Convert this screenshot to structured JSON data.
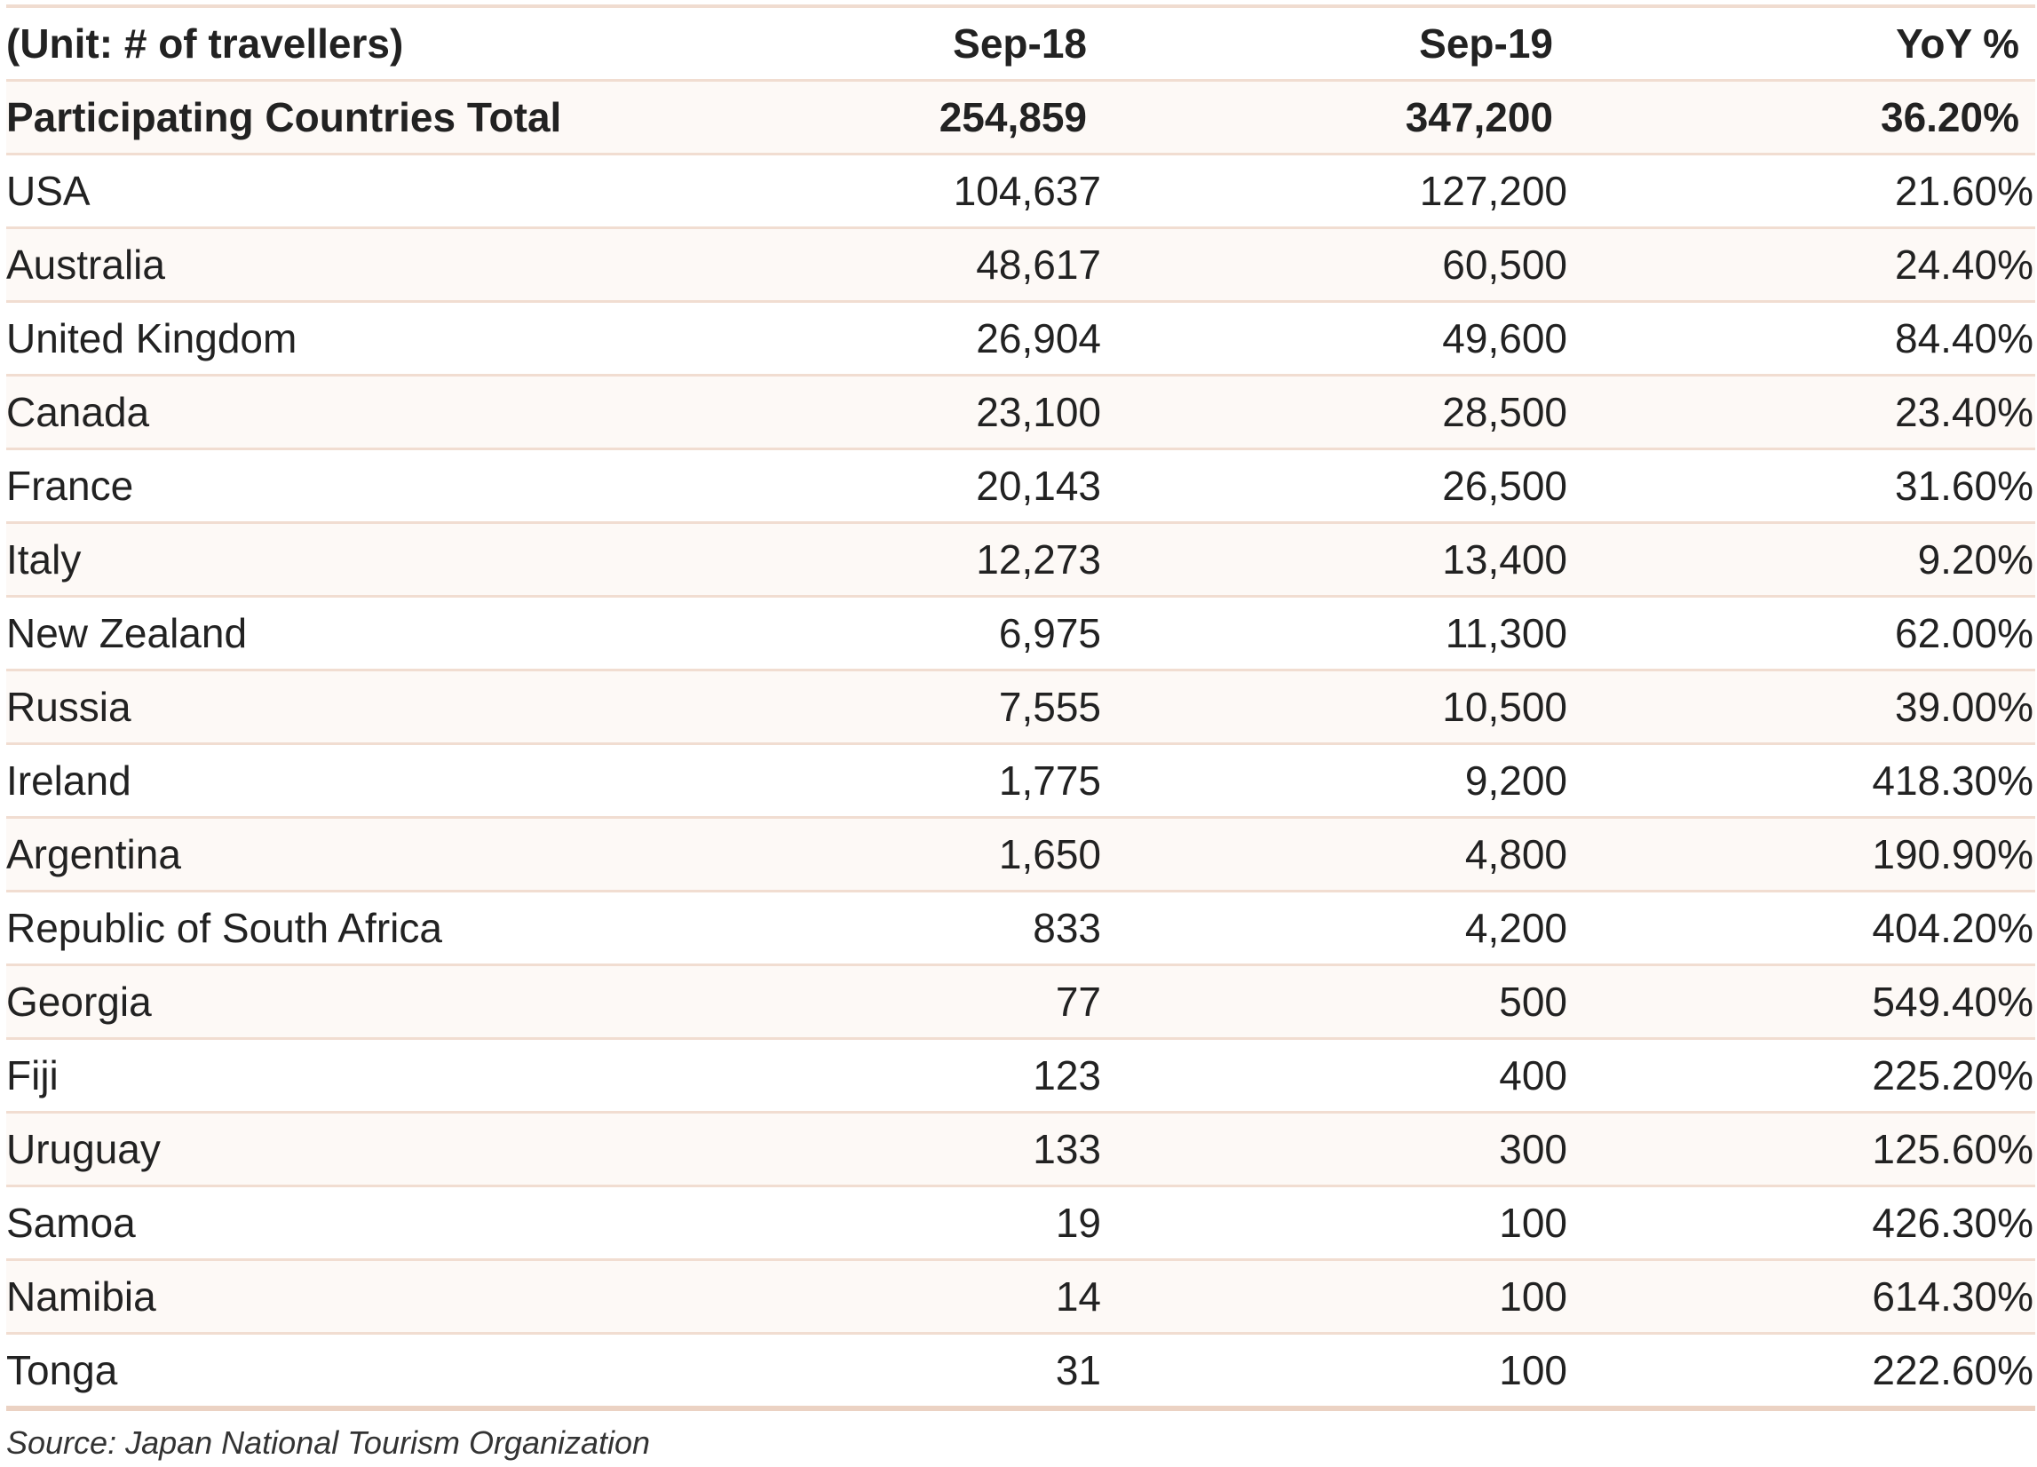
{
  "chart_data": {
    "type": "table",
    "columns": [
      "(Unit: # of travellers)",
      "Sep-18",
      "Sep-19",
      "YoY %"
    ],
    "total": {
      "label": "Participating Countries Total",
      "sep18": "254,859",
      "sep19": "347,200",
      "yoy": "36.20%"
    },
    "rows": [
      {
        "country": "USA",
        "sep18": "104,637",
        "sep19": "127,200",
        "yoy": "21.60%"
      },
      {
        "country": "Australia",
        "sep18": "48,617",
        "sep19": "60,500",
        "yoy": "24.40%"
      },
      {
        "country": "United Kingdom",
        "sep18": "26,904",
        "sep19": "49,600",
        "yoy": "84.40%"
      },
      {
        "country": "Canada",
        "sep18": "23,100",
        "sep19": "28,500",
        "yoy": "23.40%"
      },
      {
        "country": "France",
        "sep18": "20,143",
        "sep19": "26,500",
        "yoy": "31.60%"
      },
      {
        "country": "Italy",
        "sep18": "12,273",
        "sep19": "13,400",
        "yoy": "9.20%"
      },
      {
        "country": "New Zealand",
        "sep18": "6,975",
        "sep19": "11,300",
        "yoy": "62.00%"
      },
      {
        "country": "Russia",
        "sep18": "7,555",
        "sep19": "10,500",
        "yoy": "39.00%"
      },
      {
        "country": "Ireland",
        "sep18": "1,775",
        "sep19": "9,200",
        "yoy": "418.30%"
      },
      {
        "country": "Argentina",
        "sep18": "1,650",
        "sep19": "4,800",
        "yoy": "190.90%"
      },
      {
        "country": "Republic of South Africa",
        "sep18": "833",
        "sep19": "4,200",
        "yoy": "404.20%"
      },
      {
        "country": "Georgia",
        "sep18": "77",
        "sep19": "500",
        "yoy": "549.40%"
      },
      {
        "country": "Fiji",
        "sep18": "123",
        "sep19": "400",
        "yoy": "225.20%"
      },
      {
        "country": "Uruguay",
        "sep18": "133",
        "sep19": "300",
        "yoy": "125.60%"
      },
      {
        "country": "Samoa",
        "sep18": "19",
        "sep19": "100",
        "yoy": "426.30%"
      },
      {
        "country": "Namibia",
        "sep18": "14",
        "sep19": "100",
        "yoy": "614.30%"
      },
      {
        "country": "Tonga",
        "sep18": "31",
        "sep19": "100",
        "yoy": "222.60%"
      }
    ],
    "source": "Source: Japan National Tourism Organization"
  },
  "colors": {
    "rule": "#f1ddd1",
    "stripe": "#fdf9f6",
    "text": "#222222"
  }
}
